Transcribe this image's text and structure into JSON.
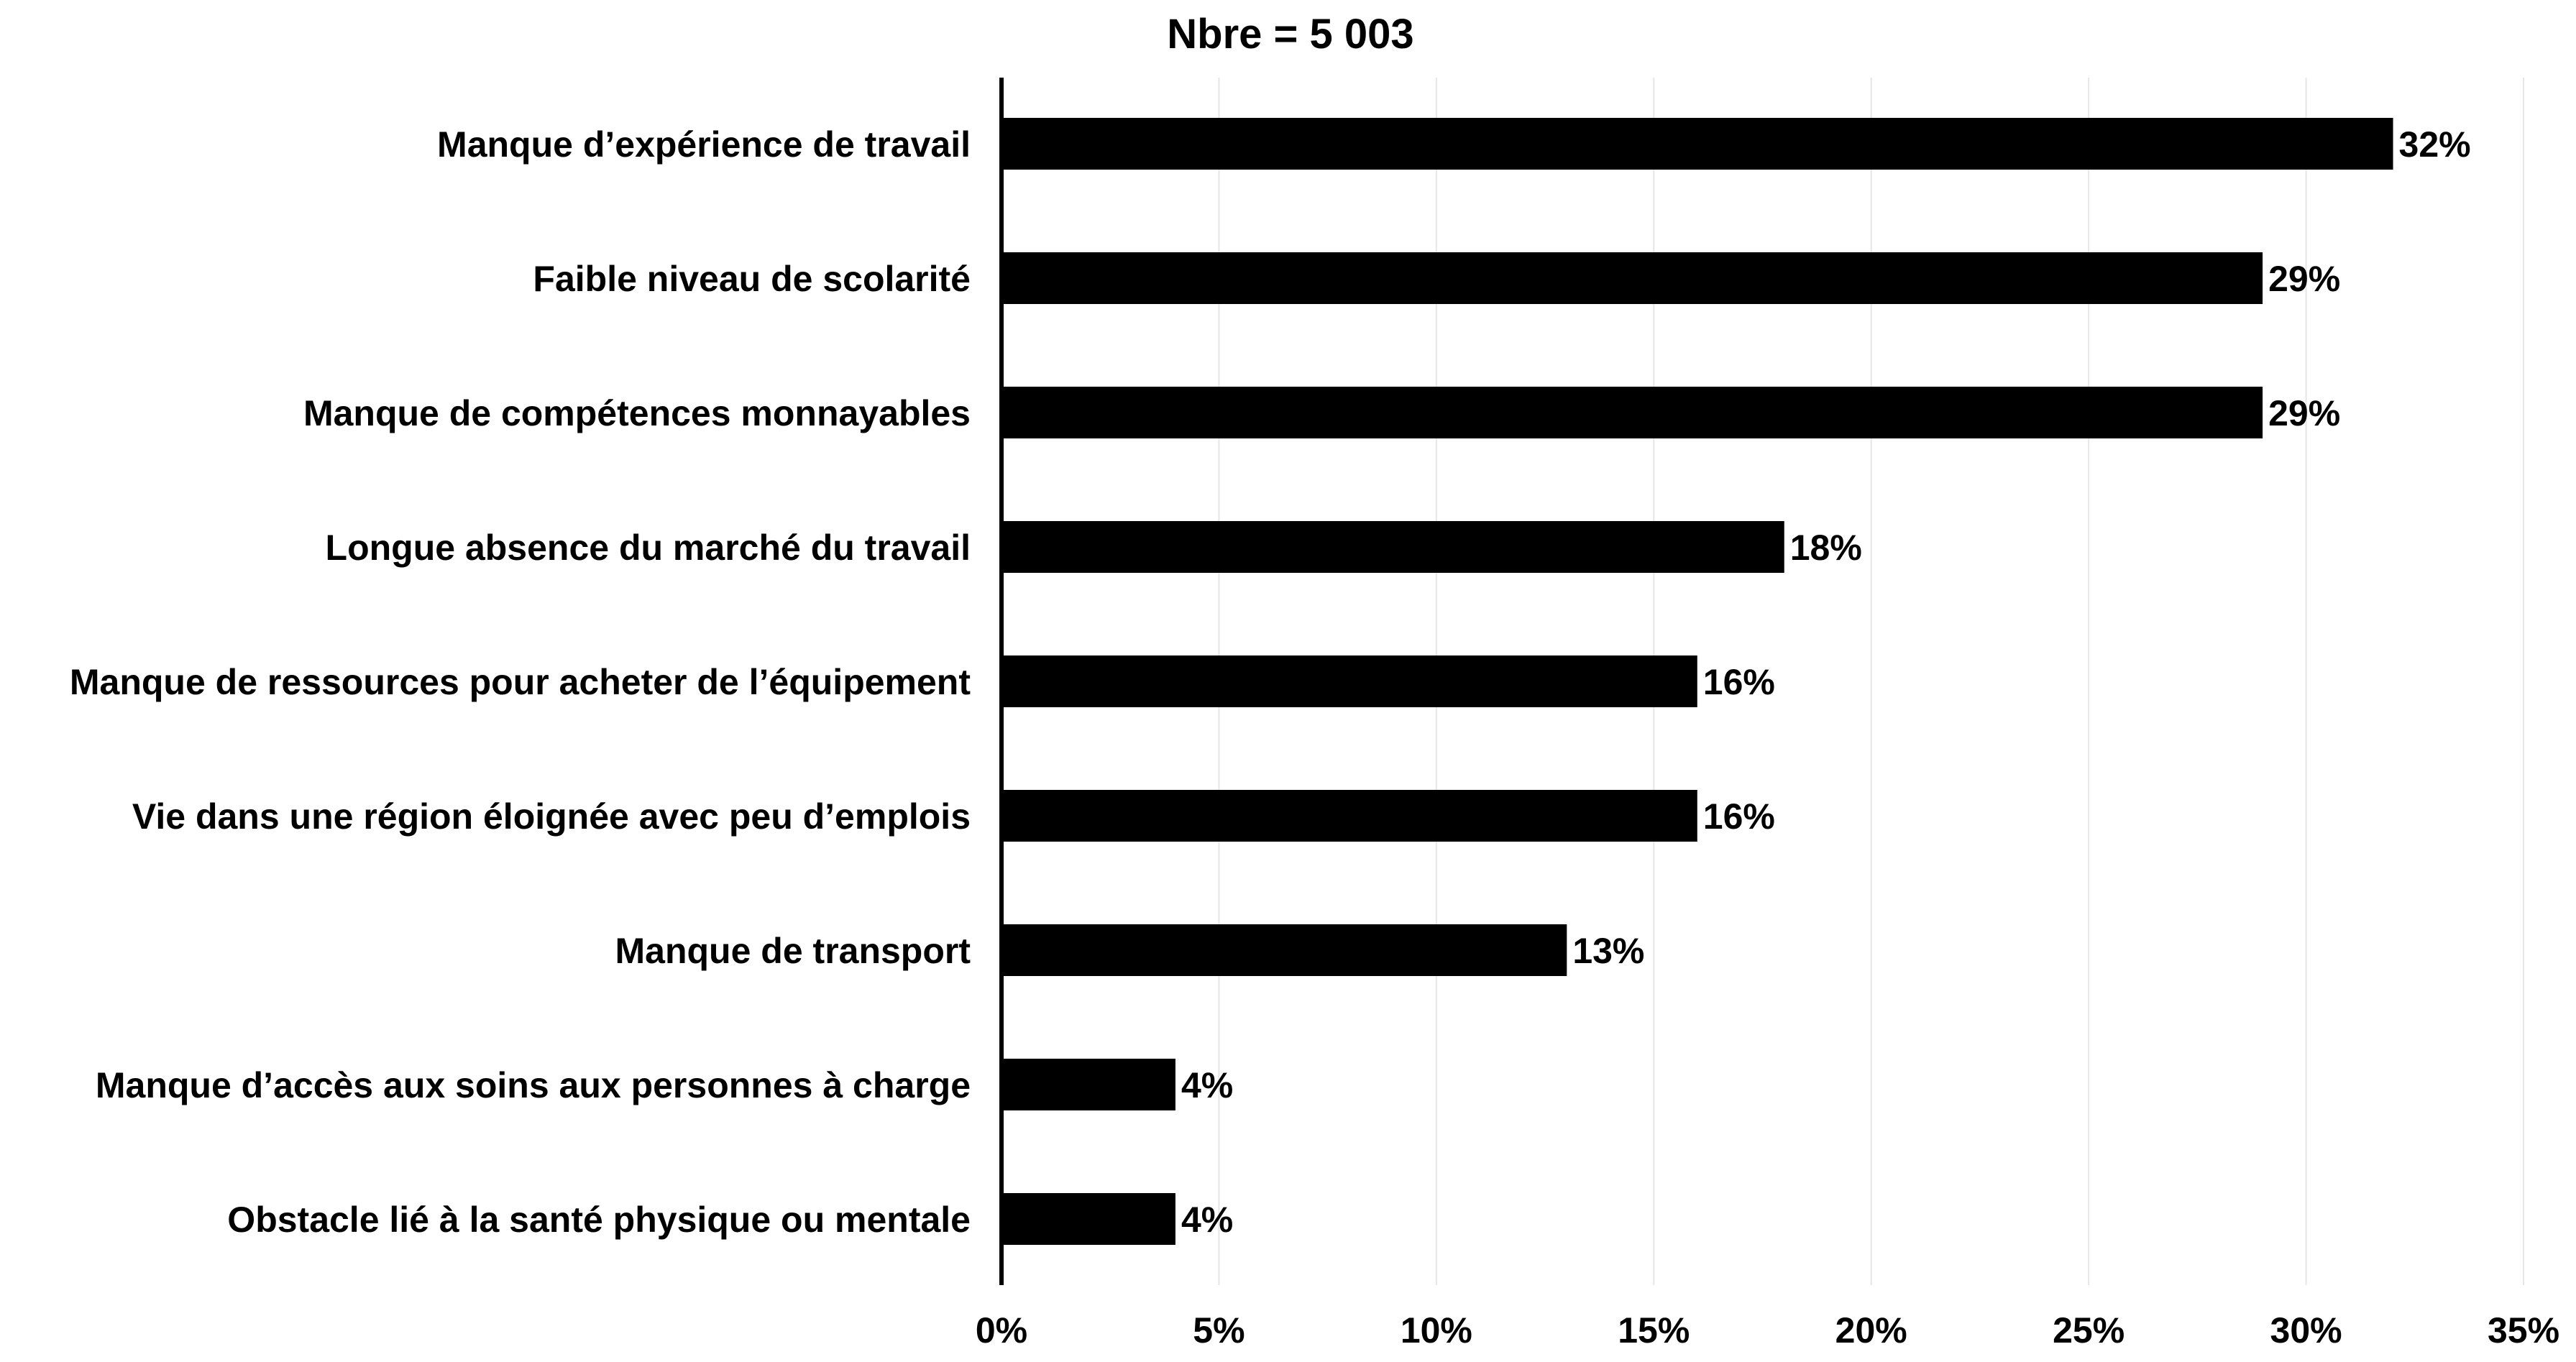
{
  "chart_data": {
    "type": "bar",
    "orientation": "horizontal",
    "title": "Nbre = 5 003",
    "categories": [
      "Manque d’expérience de travail",
      "Faible niveau de scolarité",
      "Manque de compétences monnayables",
      "Longue absence du marché du travail",
      "Manque de ressources pour acheter de l’équipement",
      "Vie dans une région éloignée avec peu d’emplois",
      "Manque de transport",
      "Manque d’accès aux soins aux personnes à charge",
      "Obstacle lié à la santé physique ou mentale"
    ],
    "values": [
      32,
      29,
      29,
      18,
      16,
      16,
      13,
      4,
      4
    ],
    "data_labels": [
      "32%",
      "29%",
      "29%",
      "18%",
      "16%",
      "16%",
      "13%",
      "4%",
      "4%"
    ],
    "xlim": [
      0,
      35
    ],
    "x_ticks": [
      0,
      5,
      10,
      15,
      20,
      25,
      30,
      35
    ],
    "x_tick_labels": [
      "0%",
      "5%",
      "10%",
      "15%",
      "20%",
      "25%",
      "30%",
      "35%"
    ],
    "xlabel": "",
    "ylabel": "",
    "grid": "vertical",
    "legend": "none",
    "colors": {
      "bar": "#000000",
      "grid": "#e6e6e6",
      "axis": "#000000",
      "text": "#000000"
    }
  }
}
